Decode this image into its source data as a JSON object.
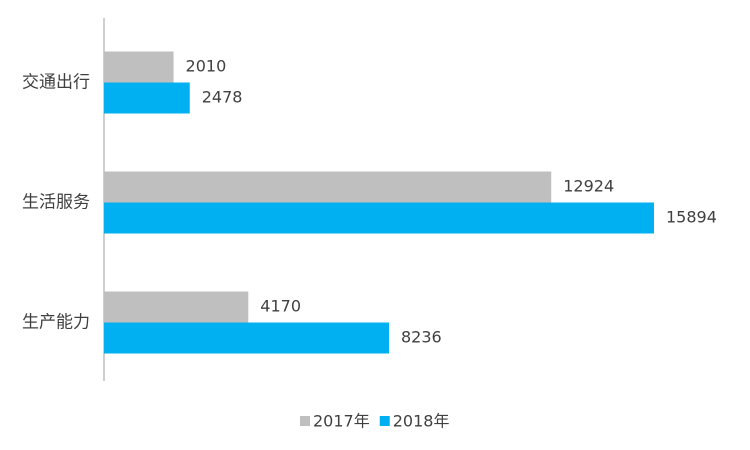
{
  "chart_data": {
    "type": "hbar",
    "categories": [
      "交通出行",
      "生活服务",
      "生产能力"
    ],
    "series": [
      {
        "name": "2017年",
        "color": "#bfbfbf",
        "values": [
          2010,
          12924,
          4170
        ]
      },
      {
        "name": "2018年",
        "color": "#00b0f0",
        "values": [
          2478,
          15894,
          8236
        ]
      }
    ]
  }
}
